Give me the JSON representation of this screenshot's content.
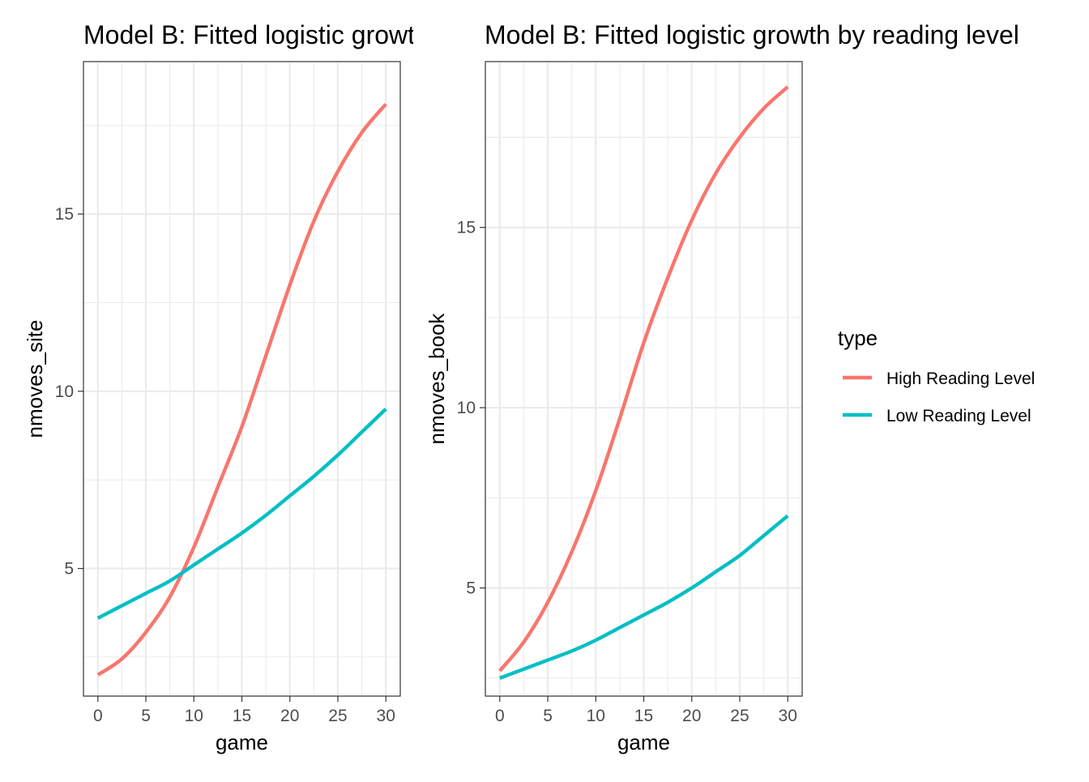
{
  "colors": {
    "high": "#F8766D",
    "low": "#00BFC4"
  },
  "legend": {
    "title": "type",
    "items": [
      {
        "label": "High Reading Level",
        "color_key": "high"
      },
      {
        "label": "Low Reading Level",
        "color_key": "low"
      }
    ]
  },
  "chart_data": [
    {
      "type": "line",
      "title": "Model B: Fitted logistic growth by reading level",
      "xlabel": "game",
      "ylabel": "nmoves_site",
      "xlim": [
        0,
        30
      ],
      "ylim": [
        1.4,
        19.3
      ],
      "x_ticks": [
        0,
        5,
        10,
        15,
        20,
        25,
        30
      ],
      "y_ticks": [
        5,
        10,
        15
      ],
      "grid": true,
      "x": [
        0,
        2.5,
        5,
        7.5,
        10,
        12.5,
        15,
        17.5,
        20,
        22.5,
        25,
        27.5,
        30
      ],
      "series": [
        {
          "name": "High Reading Level",
          "color_key": "high",
          "values": [
            2.0,
            2.45,
            3.2,
            4.2,
            5.6,
            7.3,
            9.0,
            11.0,
            13.0,
            14.8,
            16.2,
            17.3,
            18.1
          ]
        },
        {
          "name": "Low Reading Level",
          "color_key": "low",
          "values": [
            3.6,
            3.95,
            4.3,
            4.65,
            5.1,
            5.55,
            6.0,
            6.5,
            7.05,
            7.6,
            8.2,
            8.85,
            9.5
          ]
        }
      ]
    },
    {
      "type": "line",
      "title": "Model B: Fitted logistic growth by reading level",
      "xlabel": "game",
      "ylabel": "nmoves_book",
      "xlim": [
        0,
        30
      ],
      "ylim": [
        2.0,
        19.6
      ],
      "x_ticks": [
        0,
        5,
        10,
        15,
        20,
        25,
        30
      ],
      "y_ticks": [
        5,
        10,
        15
      ],
      "grid": true,
      "x": [
        0,
        2.5,
        5,
        7.5,
        10,
        12.5,
        15,
        17.5,
        20,
        22.5,
        25,
        27.5,
        30
      ],
      "series": [
        {
          "name": "High Reading Level",
          "color_key": "high",
          "values": [
            2.7,
            3.5,
            4.6,
            6.0,
            7.7,
            9.7,
            11.8,
            13.6,
            15.2,
            16.5,
            17.5,
            18.3,
            18.9
          ]
        },
        {
          "name": "Low Reading Level",
          "color_key": "low",
          "values": [
            2.5,
            2.75,
            3.0,
            3.25,
            3.55,
            3.9,
            4.25,
            4.6,
            5.0,
            5.45,
            5.9,
            6.45,
            7.0
          ]
        }
      ]
    }
  ]
}
